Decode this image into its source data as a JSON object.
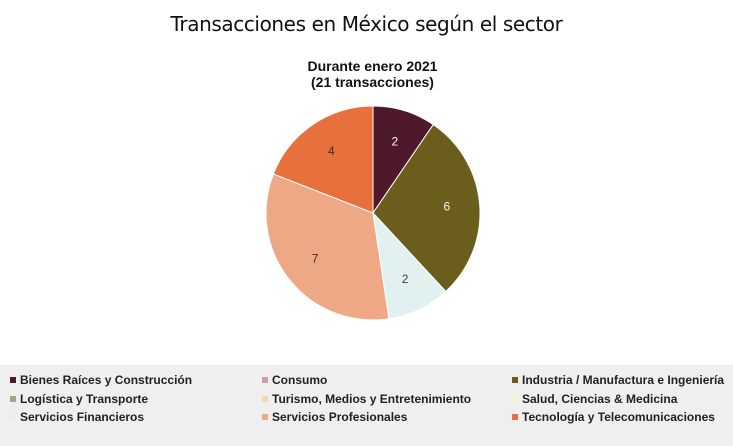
{
  "page": {
    "title": "Transacciones en México según el sector"
  },
  "chart_data": {
    "type": "pie",
    "title_lines": [
      "Durante enero 2021",
      "(21 transacciones)"
    ],
    "slices": [
      {
        "label": "Bienes Raíces y Construcción",
        "value": 2,
        "color": "#4e1a2b"
      },
      {
        "label": "Industria / Manufactura e Ingeniería",
        "value": 6,
        "color": "#6b5e1c"
      },
      {
        "label": "Servicios Financieros",
        "value": 2,
        "color": "#e1f1f0"
      },
      {
        "label": "Servicios Profesionales",
        "value": 7,
        "color": "#efa886"
      },
      {
        "label": "Tecnología y Telecomunicaciones",
        "value": 4,
        "color": "#e7703d"
      }
    ],
    "start_angle_deg": 0,
    "direction": "clockwise",
    "legend_position": "bottom",
    "legend": [
      {
        "label": "Bienes Raíces y Construcción",
        "color": "#4e1a2b"
      },
      {
        "label": "Consumo",
        "color": "#c9a0a6"
      },
      {
        "label": "Industria / Manufactura e Ingeniería",
        "color": "#6b5e1c"
      },
      {
        "label": "Logística y Transporte",
        "color": "#a3a38a"
      },
      {
        "label": "Turismo, Medios y Entretenimiento",
        "color": "#f3d9b1"
      },
      {
        "label": "Salud, Ciencias & Medicina",
        "color": "#f7f3da"
      },
      {
        "label": "Servicios Financieros",
        "color": "#e1f1f0"
      },
      {
        "label": "Servicios Profesionales",
        "color": "#efa886"
      },
      {
        "label": "Tecnología y Telecomunicaciones",
        "color": "#e7703d"
      }
    ]
  }
}
